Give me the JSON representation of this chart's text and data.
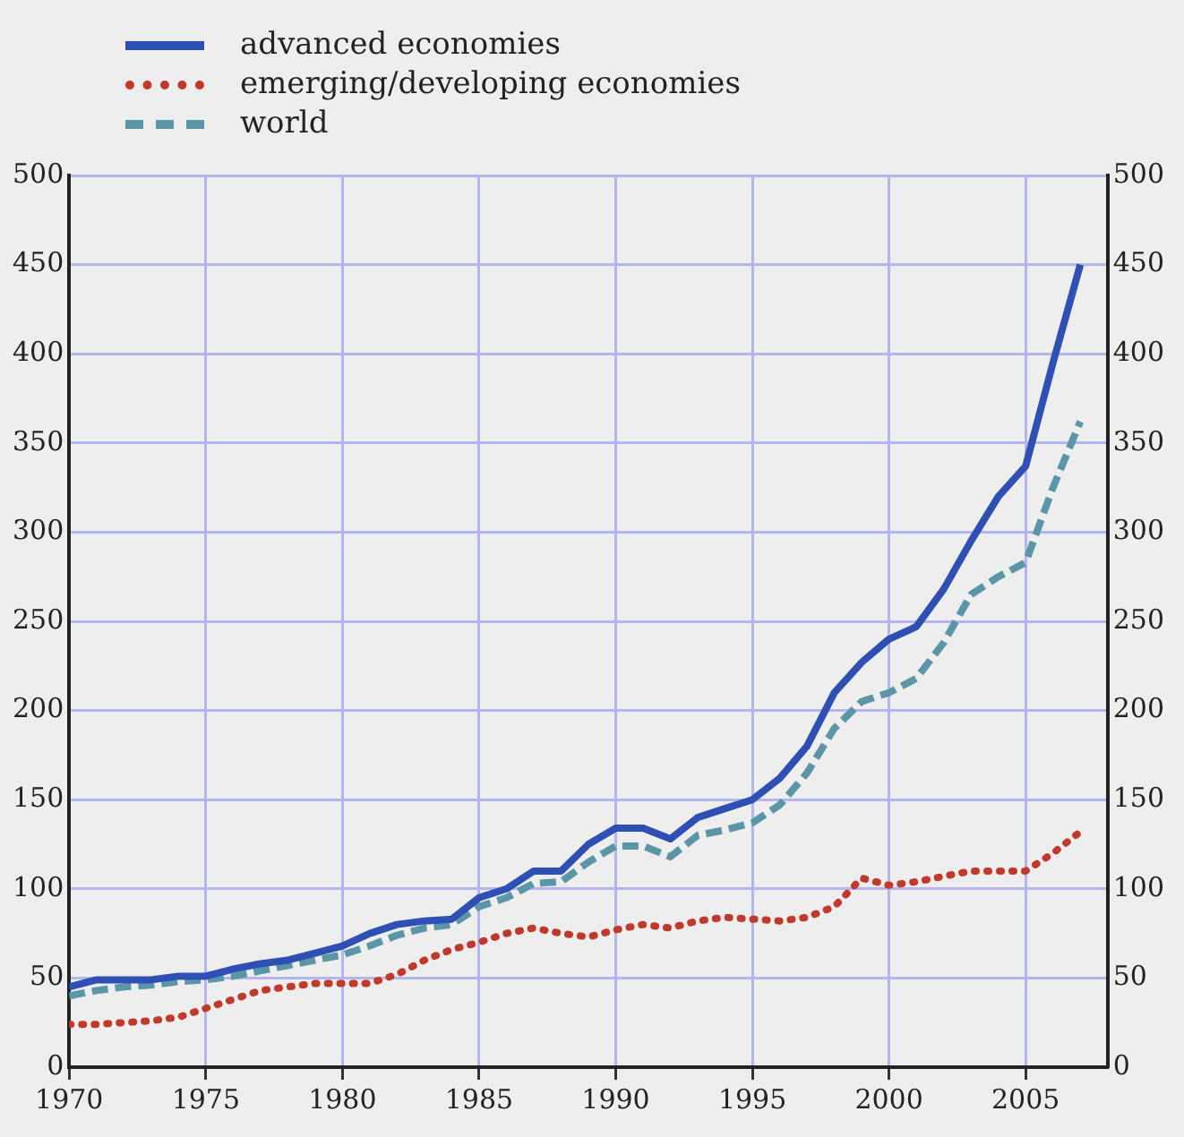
{
  "chart_data": {
    "type": "line",
    "x": [
      1970,
      1971,
      1972,
      1973,
      1974,
      1975,
      1976,
      1977,
      1978,
      1979,
      1980,
      1981,
      1982,
      1983,
      1984,
      1985,
      1986,
      1987,
      1988,
      1989,
      1990,
      1991,
      1992,
      1993,
      1994,
      1995,
      1996,
      1997,
      1998,
      1999,
      2000,
      2001,
      2002,
      2003,
      2004,
      2005,
      2006,
      2007
    ],
    "series": [
      {
        "name": "advanced economies",
        "color": "#2e4fb4",
        "line_style": "solid",
        "values": [
          45,
          49,
          49,
          49,
          51,
          51,
          55,
          58,
          60,
          64,
          68,
          75,
          80,
          82,
          83,
          95,
          100,
          110,
          110,
          125,
          134,
          134,
          128,
          140,
          145,
          150,
          162,
          180,
          210,
          227,
          240,
          247,
          268,
          295,
          320,
          337,
          395,
          450
        ]
      },
      {
        "name": "emerging/developing economies",
        "color": "#c0392b",
        "line_style": "dotted",
        "values": [
          24,
          24,
          25,
          26,
          28,
          33,
          38,
          43,
          45,
          47,
          47,
          47,
          52,
          60,
          66,
          70,
          75,
          78,
          75,
          73,
          77,
          80,
          78,
          82,
          84,
          83,
          82,
          84,
          90,
          106,
          102,
          104,
          107,
          110,
          110,
          110,
          120,
          132
        ]
      },
      {
        "name": "world",
        "color": "#5b96a8",
        "line_style": "dashed",
        "values": [
          40,
          43,
          45,
          46,
          48,
          49,
          51,
          54,
          57,
          60,
          63,
          68,
          74,
          78,
          80,
          90,
          95,
          103,
          104,
          115,
          124,
          124,
          118,
          130,
          133,
          137,
          147,
          165,
          190,
          205,
          210,
          218,
          238,
          265,
          275,
          283,
          325,
          362
        ]
      }
    ],
    "xlim": [
      1970,
      2008
    ],
    "xticks": [
      1970,
      1975,
      1980,
      1985,
      1990,
      1995,
      2000,
      2005
    ],
    "ylim": [
      0,
      500
    ],
    "yticks": [
      0,
      50,
      100,
      150,
      200,
      250,
      300,
      350,
      400,
      450,
      500
    ],
    "y2lim": [
      0,
      500
    ],
    "y2ticks": [
      0,
      50,
      100,
      150,
      200,
      250,
      300,
      350,
      400,
      450,
      500
    ],
    "grid": true,
    "legend": "top left",
    "marker": "none"
  }
}
